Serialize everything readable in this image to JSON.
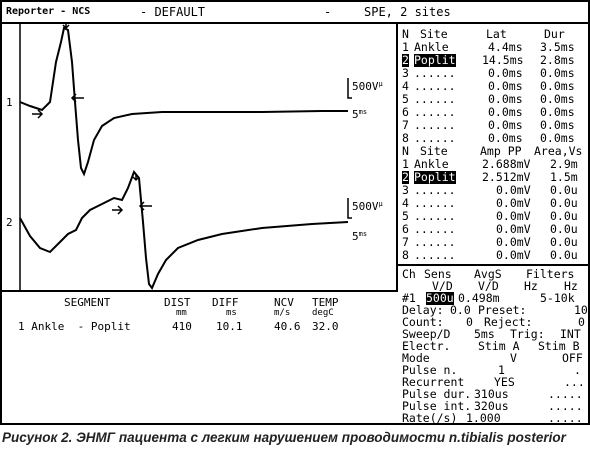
{
  "title_bar": {
    "left": "Reporter - NCS",
    "mode": "- DEFAULT",
    "dash": "-",
    "study": "SPE, 2 sites",
    "icon": "phone-icon"
  },
  "traces": {
    "ch1_label": "1",
    "ch2_label": "2",
    "sens1": "500V",
    "sens1_unit": "µ",
    "time1": "5",
    "time1_unit": "ms",
    "sens2": "500V",
    "sens2_unit": "µ",
    "time2": "5",
    "time2_unit": "ms"
  },
  "segment_table": {
    "headers": [
      "SEGMENT",
      "DIST",
      "DIFF",
      "NCV",
      "TEMP"
    ],
    "units": [
      "",
      "mm",
      "ms",
      "m/s",
      "degC"
    ],
    "rows": [
      [
        "1 Ankle  - Poplit",
        "410",
        "10.1",
        "40.6",
        "32.0"
      ]
    ]
  },
  "latency_table": {
    "headers": [
      "N",
      "Site",
      "Lat",
      "Dur"
    ],
    "rows": [
      [
        "1",
        "Ankle",
        "4.4ms",
        "3.5ms"
      ],
      [
        "2",
        "Poplit",
        "14.5ms",
        "2.8ms"
      ],
      [
        "3",
        "......",
        "0.0ms",
        "0.0ms"
      ],
      [
        "4",
        "......",
        "0.0ms",
        "0.0ms"
      ],
      [
        "5",
        "......",
        "0.0ms",
        "0.0ms"
      ],
      [
        "6",
        "......",
        "0.0ms",
        "0.0ms"
      ],
      [
        "7",
        "......",
        "0.0ms",
        "0.0ms"
      ],
      [
        "8",
        "......",
        "0.0ms",
        "0.0ms"
      ]
    ]
  },
  "amplitude_table": {
    "headers": [
      "N",
      "Site",
      "Amp PP",
      "Area,Vs"
    ],
    "rows": [
      [
        "1",
        "Ankle",
        "2.688mV",
        "2.9m"
      ],
      [
        "2",
        "Poplit",
        "2.512mV",
        "1.5m"
      ],
      [
        "3",
        "......",
        "0.0mV",
        "0.0u"
      ],
      [
        "4",
        "......",
        "0.0mV",
        "0.0u"
      ],
      [
        "5",
        "......",
        "0.0mV",
        "0.0u"
      ],
      [
        "6",
        "......",
        "0.0mV",
        "0.0u"
      ],
      [
        "7",
        "......",
        "0.0mV",
        "0.0u"
      ],
      [
        "8",
        "......",
        "0.0mV",
        "0.0u"
      ]
    ]
  },
  "settings": {
    "header1": [
      "Ch",
      "Sens",
      "AvgS",
      "Filters"
    ],
    "header2": [
      "V/D",
      "V/D",
      "Hz",
      "Hz"
    ],
    "ch1": [
      "#1",
      "500u",
      "0.498m",
      "5-10k"
    ],
    "delay_label": "Delay:",
    "delay_value": "0.0",
    "preset_label": "Preset:",
    "preset_value": "10",
    "count_label": "Count:",
    "count_value": "0",
    "reject_label": "Reject:",
    "reject_value": "0",
    "sweep_label": "Sweep/D",
    "sweep_value": "5ms",
    "trig_label": "Trig:",
    "trig_value": "INT",
    "electr_label": "Electr.",
    "stim_a": "Stim A",
    "stim_b": "Stim B",
    "mode_label": "Mode",
    "mode_a": "V",
    "mode_b": "OFF",
    "pulse_n_label": "Pulse n.",
    "pulse_n_a": "1",
    "pulse_n_b": ".",
    "recurrent_label": "Recurrent",
    "recurrent_a": "YES",
    "recurrent_b": "...",
    "pulse_dur_label": "Pulse dur.",
    "pulse_dur_a": "310us",
    "pulse_dur_b": ".....",
    "pulse_int_label": "Pulse int.",
    "pulse_int_a": "320us",
    "pulse_int_b": ".....",
    "rate_label": "Rate(/s)",
    "rate_a": "1.000",
    "rate_b": "....."
  },
  "caption": "Рисунок 2. ЭНМГ пациента с легким нарушением проводимости n.tibialis posterior"
}
